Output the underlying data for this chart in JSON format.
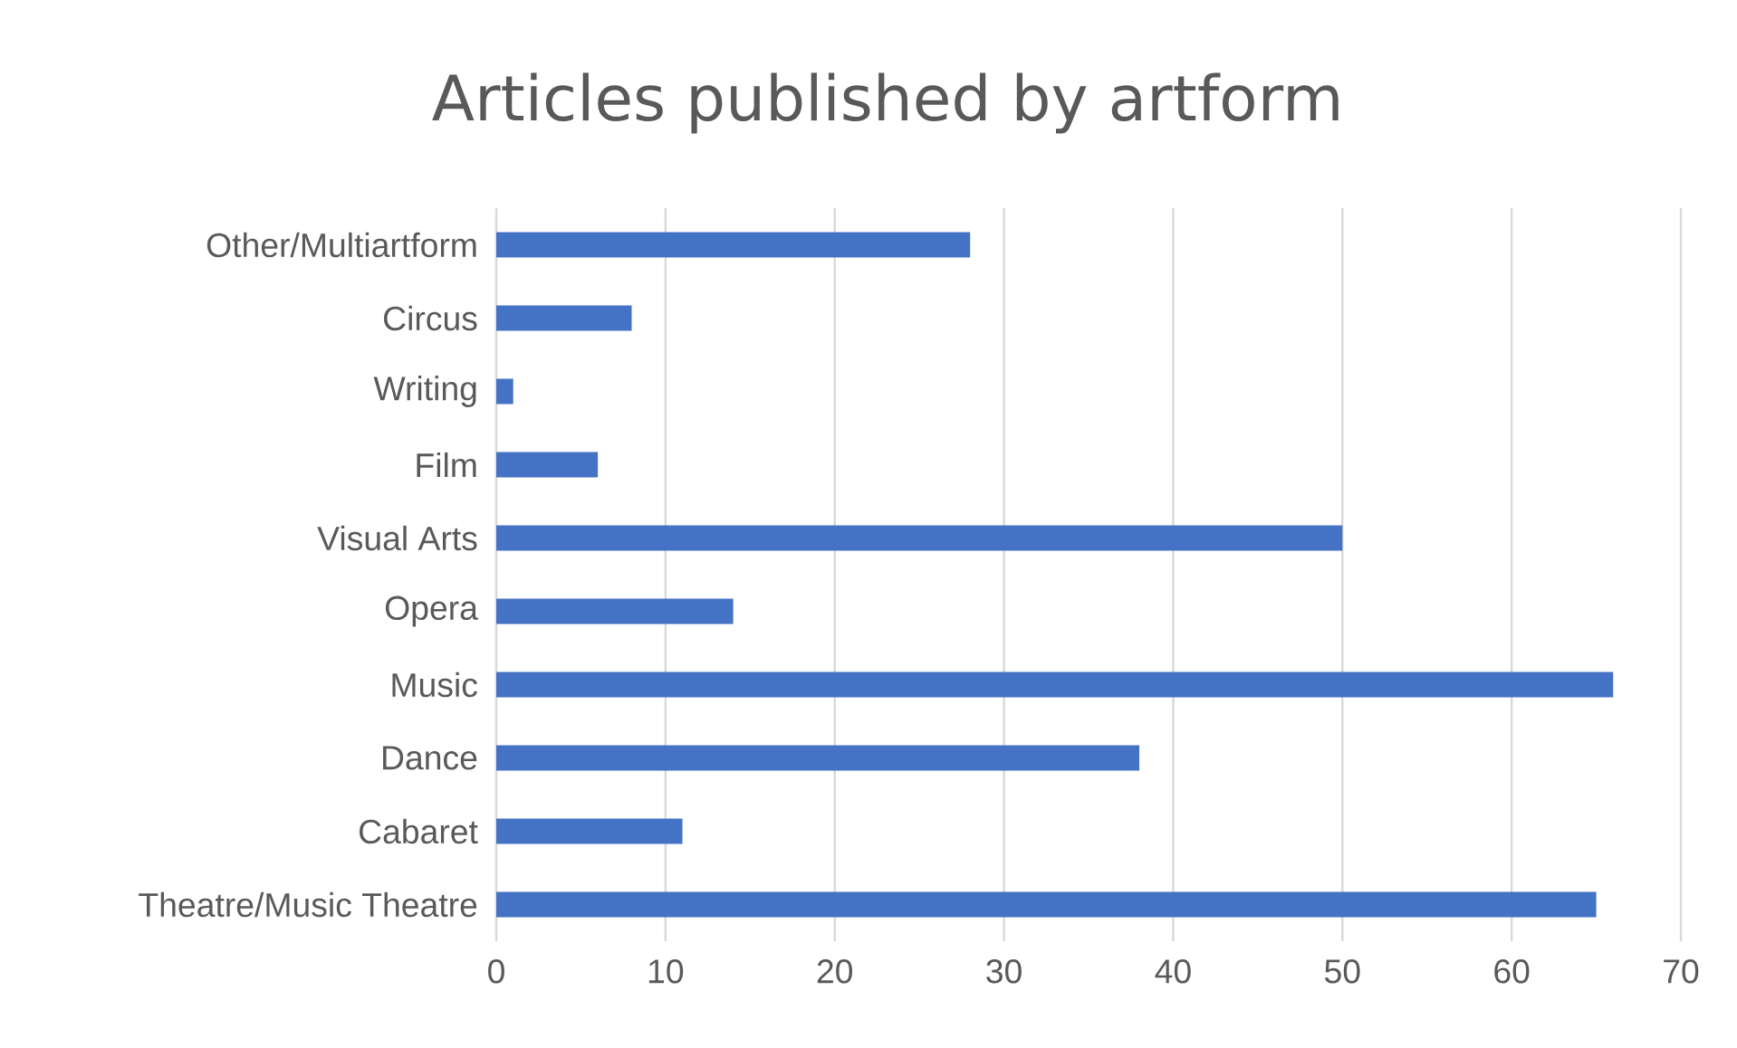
{
  "chart_data": {
    "type": "bar",
    "orientation": "horizontal",
    "title": "Articles published by artform",
    "categories": [
      "Other/Multiartform",
      "Circus",
      "Writing",
      "Film",
      "Visual Arts",
      "Opera",
      "Music",
      "Dance",
      "Cabaret",
      "Theatre/Music Theatre"
    ],
    "values": [
      28,
      8,
      1,
      6,
      50,
      14,
      66,
      38,
      11,
      65
    ],
    "color": "#4472c4",
    "xlim": [
      0,
      70
    ],
    "xticks": [
      0,
      10,
      20,
      30,
      40,
      50,
      60,
      70
    ],
    "grid": "x"
  }
}
